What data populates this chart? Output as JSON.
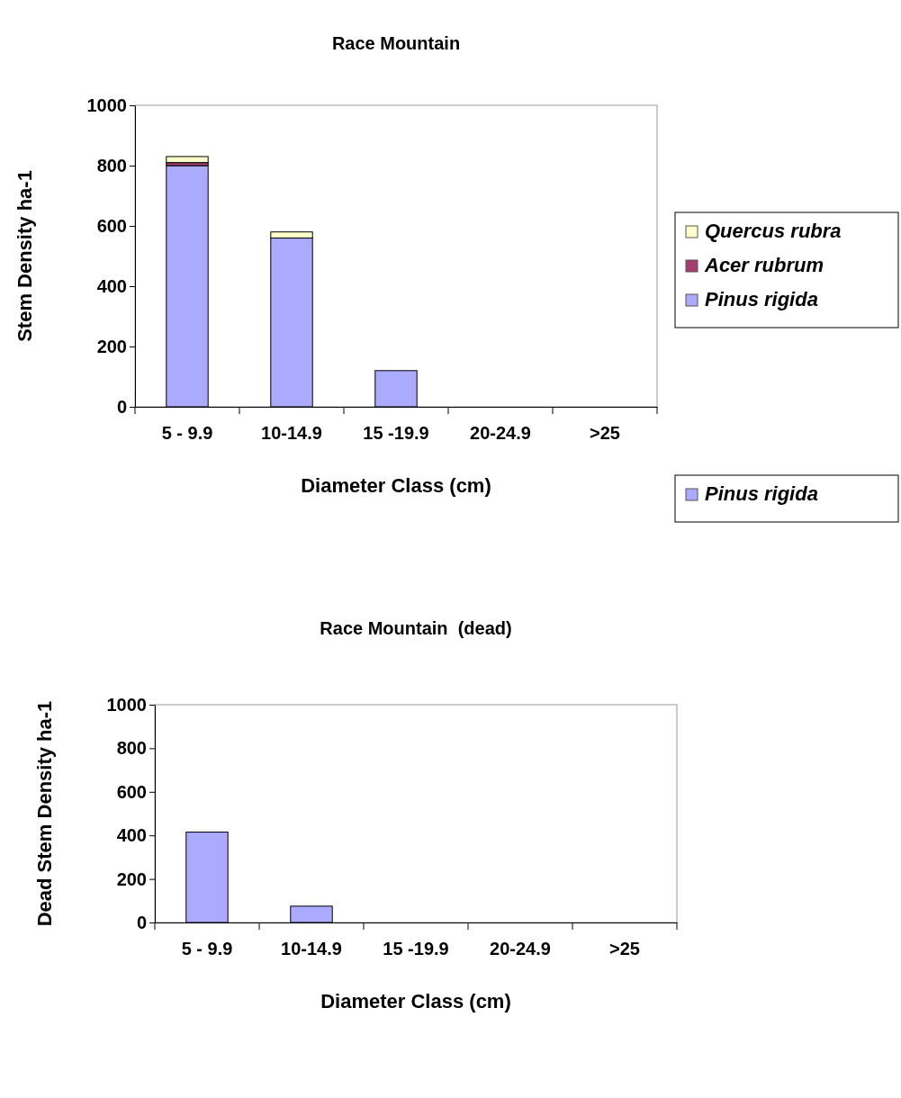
{
  "chart_data": [
    {
      "type": "bar",
      "title": "Race Mountain",
      "xlabel": "Diameter Class (cm)",
      "ylabel": "Stem Density ha-1",
      "categories": [
        "5 - 9.9",
        "10-14.9",
        "15 -19.9",
        "20-24.9",
        ">25"
      ],
      "stacked": true,
      "ylim": [
        0,
        1000
      ],
      "yticks": [
        0,
        200,
        400,
        600,
        800,
        1000
      ],
      "legend": "right",
      "series": [
        {
          "name": "Pinus rigida",
          "color": "#aaaaff",
          "values": [
            800,
            560,
            120,
            0,
            0
          ]
        },
        {
          "name": "Acer rubrum",
          "color": "#a33e6e",
          "values": [
            10,
            0,
            0,
            0,
            0
          ]
        },
        {
          "name": "Quercus rubra",
          "color": "#ffffcc",
          "values": [
            20,
            20,
            0,
            0,
            0
          ]
        }
      ]
    },
    {
      "type": "bar",
      "title": "Race Mountain  (dead)",
      "xlabel": "Diameter Class (cm)",
      "ylabel": "Dead Stem Density ha-1",
      "categories": [
        "5 - 9.9",
        "10-14.9",
        "15 -19.9",
        "20-24.9",
        ">25"
      ],
      "stacked": true,
      "ylim": [
        0,
        1000
      ],
      "yticks": [
        0,
        200,
        400,
        600,
        800,
        1000
      ],
      "legend": "right",
      "series": [
        {
          "name": "Pinus rigida",
          "color": "#aaaaff",
          "values": [
            415,
            75,
            0,
            0,
            0
          ]
        }
      ]
    }
  ]
}
